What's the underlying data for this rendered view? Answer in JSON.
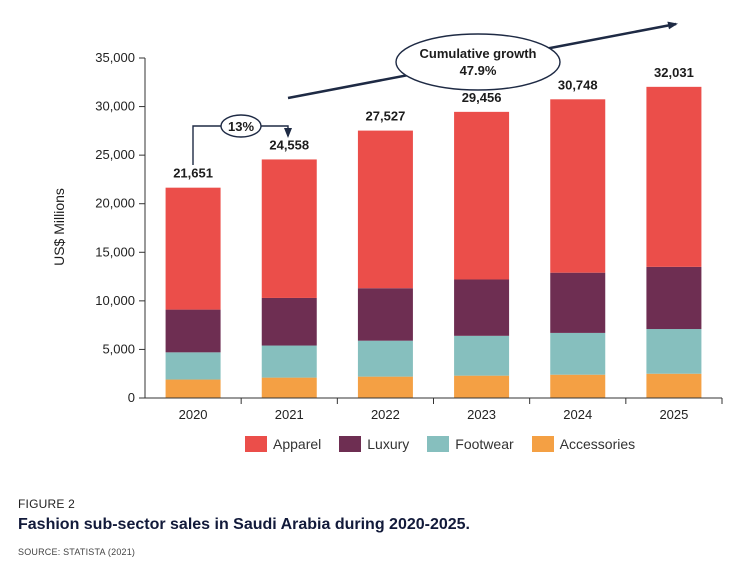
{
  "figure": {
    "label": "FIGURE 2",
    "title": "Fashion sub-sector sales in Saudi Arabia during 2020-2025.",
    "source": "SOURCE: STATISTA (2021)"
  },
  "chart_data": {
    "type": "bar",
    "stacked": true,
    "categories": [
      "2020",
      "2021",
      "2022",
      "2023",
      "2024",
      "2025"
    ],
    "ylabel": "US$ Millions",
    "ylim": [
      0,
      35000
    ],
    "yticks": [
      0,
      5000,
      10000,
      15000,
      20000,
      25000,
      30000,
      35000
    ],
    "ytick_labels": [
      "0",
      "5,000",
      "10,000",
      "15,000",
      "20,000",
      "25,000",
      "30,000",
      "35,000"
    ],
    "totals": [
      21651,
      24558,
      27527,
      29456,
      30748,
      32031
    ],
    "total_labels": [
      "21,651",
      "24,558",
      "27,527",
      "29,456",
      "30,748",
      "32,031"
    ],
    "series": [
      {
        "name": "Accessories",
        "color": "#f4a044",
        "values": [
          1900,
          2100,
          2200,
          2300,
          2400,
          2500
        ]
      },
      {
        "name": "Footwear",
        "color": "#86bfbe",
        "values": [
          2800,
          3300,
          3700,
          4100,
          4300,
          4600
        ]
      },
      {
        "name": "Luxury",
        "color": "#6e2e52",
        "values": [
          4400,
          4900,
          5400,
          5800,
          6200,
          6400
        ]
      },
      {
        "name": "Apparel",
        "color": "#eb4e4a",
        "values": [
          12551,
          14258,
          16227,
          17256,
          17848,
          18531
        ]
      }
    ],
    "legend_order": [
      "Apparel",
      "Luxury",
      "Footwear",
      "Accessories"
    ],
    "legend_position": "bottom",
    "grid": false,
    "annotations": {
      "growth_2021": "13%",
      "cumulative_line1": "Cumulative growth",
      "cumulative_line2": "47.9%"
    }
  }
}
